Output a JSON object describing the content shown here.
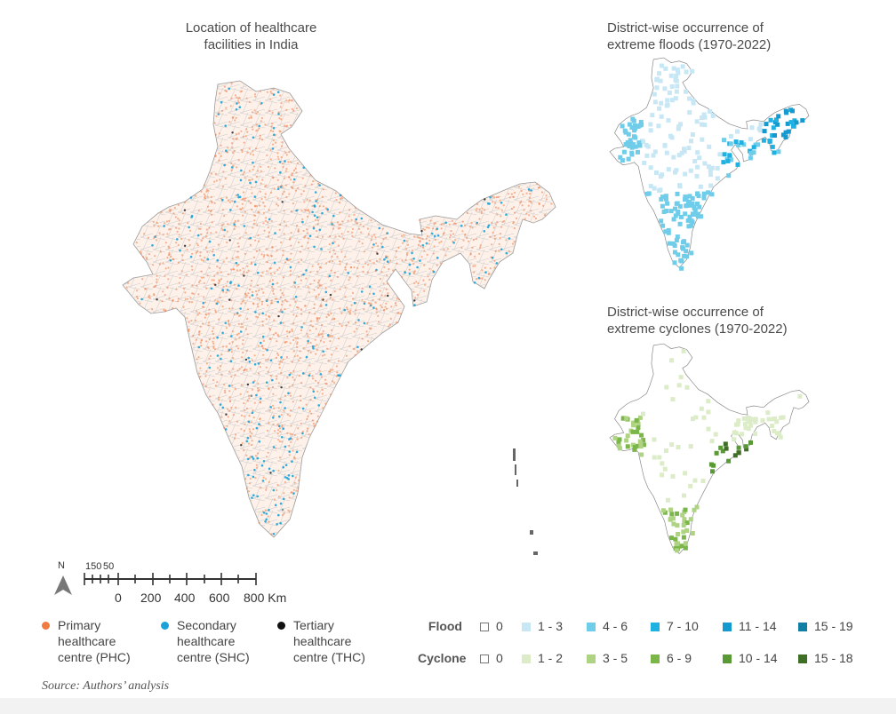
{
  "titles": {
    "main": "Location of healthcare\nfacilities in India",
    "flood": "District-wise occurrence of\nextreme floods (1970-2022)",
    "cyclone": "District-wise occurrence of\nextreme cyclones (1970-2022)"
  },
  "scale_bar": {
    "north": "N",
    "small_labels": [
      "150",
      "50"
    ],
    "labels": [
      "0",
      "200",
      "400",
      "600",
      "800 Km"
    ]
  },
  "facility_legend": [
    {
      "label": "Primary\nhealthcare\ncentre (PHC)",
      "color": "#f07a42"
    },
    {
      "label": "Secondary\nhealthcare\ncentre (SHC)",
      "color": "#1ba3d9"
    },
    {
      "label": "Tertiary\nhealthcare\ncentre (THC)",
      "color": "#111111"
    }
  ],
  "flood_legend": {
    "title": "Flood",
    "items": [
      {
        "label": "0",
        "color": "#ffffff"
      },
      {
        "label": "1 - 3",
        "color": "#c7e7f5"
      },
      {
        "label": "4 - 6",
        "color": "#6fcdea"
      },
      {
        "label": "7 - 10",
        "color": "#1fb1e2"
      },
      {
        "label": "11 - 14",
        "color": "#159ad0"
      },
      {
        "label": "15 - 19",
        "color": "#117ea3"
      }
    ]
  },
  "cyclone_legend": {
    "title": "Cyclone",
    "items": [
      {
        "label": "0",
        "color": "#ffffff"
      },
      {
        "label": "1 - 2",
        "color": "#dcecc8"
      },
      {
        "label": "3 - 5",
        "color": "#aed383"
      },
      {
        "label": "6 - 9",
        "color": "#7bb748"
      },
      {
        "label": "10 - 14",
        "color": "#5a9a34"
      },
      {
        "label": "15 - 18",
        "color": "#3f6e26"
      }
    ]
  },
  "source": "Source: Authors’ analysis"
}
